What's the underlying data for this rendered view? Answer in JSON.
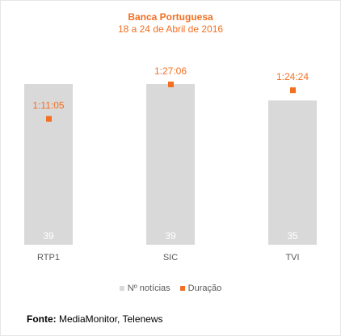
{
  "header": {
    "title": "Banca Portuguesa",
    "subtitle": "18 a 24 de Abril de 2016"
  },
  "colors": {
    "bar": "#d9d9d9",
    "marker": "#f36f21",
    "title": "#f36f21",
    "axis_text": "#595959",
    "bar_label": "#ffffff"
  },
  "chart_data": {
    "type": "bar",
    "categories": [
      "RTP1",
      "SIC",
      "TVI"
    ],
    "series": [
      {
        "name": "Nº notícias",
        "kind": "bar",
        "values": [
          39,
          39,
          35
        ]
      },
      {
        "name": "Duração",
        "kind": "marker",
        "values": [
          "1:11:05",
          "1:27:06",
          "1:24:24"
        ],
        "seconds": [
          4265,
          5226,
          5064
        ]
      }
    ],
    "title": "Banca Portuguesa",
    "subtitle": "18 a 24 de Abril de 2016",
    "ylim_bars": [
      0,
      39
    ],
    "ylim_duration_seconds": [
      0,
      5226
    ],
    "legend_position": "bottom",
    "grid": false
  },
  "legend": {
    "items": [
      {
        "label": "Nº notícias",
        "icon": "square-gray-icon"
      },
      {
        "label": "Duração",
        "icon": "square-orange-icon"
      }
    ]
  },
  "source": {
    "label": "Fonte:",
    "text": " MediaMonitor, Telenews"
  }
}
